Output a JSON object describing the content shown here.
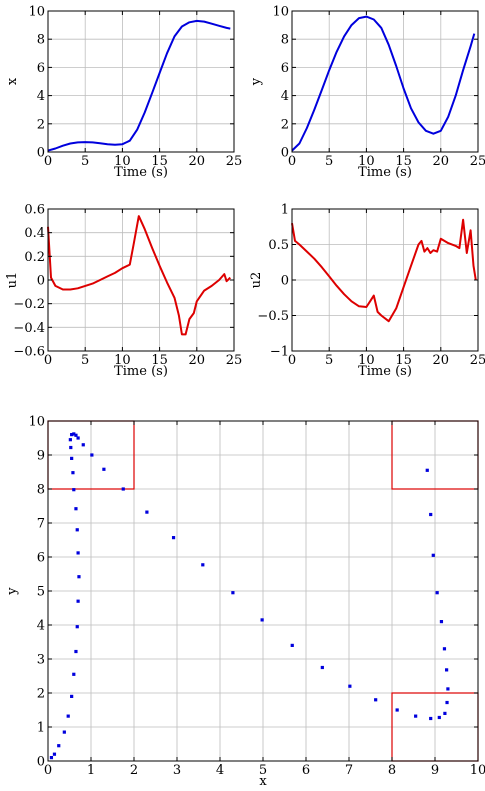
{
  "chart_data": [
    {
      "type": "line",
      "xlabel": "Time (s)",
      "ylabel": "x",
      "xlim": [
        0,
        25
      ],
      "ylim": [
        0,
        10
      ],
      "xticks": [
        0,
        5,
        10,
        15,
        20,
        25
      ],
      "yticks": [
        0,
        2,
        4,
        6,
        8,
        10
      ],
      "grid": true,
      "series": [
        {
          "color": "#0000dd",
          "x": [
            0,
            1,
            2,
            3,
            4,
            5,
            6,
            7,
            8,
            9,
            10,
            11,
            12,
            13,
            14,
            15,
            16,
            17,
            18,
            19,
            20,
            21,
            22,
            23,
            24,
            24.5
          ],
          "y": [
            0.1,
            0.25,
            0.45,
            0.6,
            0.68,
            0.7,
            0.68,
            0.62,
            0.55,
            0.52,
            0.55,
            0.8,
            1.6,
            2.8,
            4.2,
            5.6,
            7.0,
            8.2,
            8.9,
            9.2,
            9.3,
            9.25,
            9.1,
            8.95,
            8.8,
            8.75
          ]
        }
      ]
    },
    {
      "type": "line",
      "xlabel": "Time (s)",
      "ylabel": "y",
      "xlim": [
        0,
        25
      ],
      "ylim": [
        0,
        10
      ],
      "xticks": [
        0,
        5,
        10,
        15,
        20,
        25
      ],
      "yticks": [
        0,
        2,
        4,
        6,
        8,
        10
      ],
      "grid": true,
      "series": [
        {
          "color": "#0000dd",
          "x": [
            0,
            1,
            2,
            3,
            4,
            5,
            6,
            7,
            8,
            9,
            10,
            11,
            12,
            13,
            14,
            15,
            16,
            17,
            18,
            19,
            20,
            21,
            22,
            23,
            24,
            24.5
          ],
          "y": [
            0.1,
            0.6,
            1.7,
            3.0,
            4.4,
            5.8,
            7.1,
            8.2,
            9.0,
            9.5,
            9.6,
            9.4,
            8.8,
            7.6,
            6.1,
            4.5,
            3.1,
            2.1,
            1.5,
            1.3,
            1.5,
            2.5,
            4.0,
            5.8,
            7.5,
            8.4
          ]
        }
      ]
    },
    {
      "type": "line",
      "xlabel": "Time (s)",
      "ylabel": "u1",
      "xlim": [
        0,
        25
      ],
      "ylim": [
        -0.6,
        0.6
      ],
      "xticks": [
        0,
        5,
        10,
        15,
        20,
        25
      ],
      "yticks": [
        -0.6,
        -0.4,
        -0.2,
        0,
        0.2,
        0.4,
        0.6
      ],
      "grid": true,
      "series": [
        {
          "color": "#dd0000",
          "x": [
            0,
            0.4,
            1,
            2,
            3,
            4,
            5,
            6,
            7,
            8,
            9,
            10,
            11,
            11.5,
            12.2,
            13,
            14,
            15,
            16,
            17,
            17.6,
            18,
            18.5,
            19,
            19.6,
            20,
            21,
            22,
            23,
            23.7,
            24,
            24.5
          ],
          "y": [
            0.45,
            0.02,
            -0.05,
            -0.08,
            -0.08,
            -0.07,
            -0.05,
            -0.03,
            0.0,
            0.03,
            0.06,
            0.1,
            0.13,
            0.3,
            0.54,
            0.43,
            0.27,
            0.12,
            -0.02,
            -0.15,
            -0.3,
            -0.46,
            -0.46,
            -0.33,
            -0.28,
            -0.18,
            -0.09,
            -0.05,
            0.0,
            0.05,
            -0.01,
            0.02
          ]
        }
      ]
    },
    {
      "type": "line",
      "xlabel": "Time (s)",
      "ylabel": "u2",
      "xlim": [
        0,
        25
      ],
      "ylim": [
        -1,
        1
      ],
      "xticks": [
        0,
        5,
        10,
        15,
        20,
        25
      ],
      "yticks": [
        -1,
        -0.5,
        0,
        0.5,
        1
      ],
      "grid": true,
      "series": [
        {
          "color": "#dd0000",
          "x": [
            0,
            0.4,
            1,
            2,
            3,
            4,
            5,
            6,
            7,
            8,
            9,
            10,
            10.5,
            11,
            11.5,
            12,
            13,
            14,
            15,
            16,
            17,
            17.4,
            17.8,
            18.2,
            18.6,
            19,
            19.5,
            20,
            21,
            22,
            22.5,
            23,
            23.5,
            24,
            24.4,
            24.7
          ],
          "y": [
            0.8,
            0.55,
            0.5,
            0.4,
            0.3,
            0.18,
            0.05,
            -0.08,
            -0.2,
            -0.3,
            -0.37,
            -0.38,
            -0.3,
            -0.22,
            -0.45,
            -0.5,
            -0.58,
            -0.4,
            -0.1,
            0.2,
            0.5,
            0.55,
            0.4,
            0.45,
            0.38,
            0.42,
            0.4,
            0.58,
            0.52,
            0.48,
            0.45,
            0.85,
            0.38,
            0.7,
            0.2,
            0.0
          ]
        }
      ]
    },
    {
      "type": "scatter",
      "xlabel": "x",
      "ylabel": "y",
      "xlim": [
        0,
        10
      ],
      "ylim": [
        0,
        10
      ],
      "xticks": [
        0,
        1,
        2,
        3,
        4,
        5,
        6,
        7,
        8,
        9,
        10
      ],
      "yticks": [
        0,
        1,
        2,
        3,
        4,
        5,
        6,
        7,
        8,
        9,
        10
      ],
      "grid": true,
      "point_color": "#0000dd",
      "region_color": "#dd0000",
      "regions": [
        {
          "x": [
            0,
            2
          ],
          "y": [
            8,
            10
          ]
        },
        {
          "x": [
            8,
            10
          ],
          "y": [
            8,
            10
          ]
        },
        {
          "x": [
            8,
            10
          ],
          "y": [
            0,
            2
          ]
        }
      ],
      "points": [
        [
          0.08,
          0.1
        ],
        [
          0.15,
          0.2
        ],
        [
          0.25,
          0.45
        ],
        [
          0.38,
          0.85
        ],
        [
          0.47,
          1.32
        ],
        [
          0.55,
          1.9
        ],
        [
          0.6,
          2.55
        ],
        [
          0.65,
          3.22
        ],
        [
          0.68,
          3.95
        ],
        [
          0.7,
          4.7
        ],
        [
          0.72,
          5.42
        ],
        [
          0.7,
          6.12
        ],
        [
          0.68,
          6.8
        ],
        [
          0.65,
          7.42
        ],
        [
          0.6,
          7.98
        ],
        [
          0.58,
          8.48
        ],
        [
          0.55,
          8.9
        ],
        [
          0.53,
          9.22
        ],
        [
          0.52,
          9.45
        ],
        [
          0.55,
          9.6
        ],
        [
          0.6,
          9.62
        ],
        [
          0.65,
          9.58
        ],
        [
          0.7,
          9.5
        ],
        [
          0.82,
          9.3
        ],
        [
          1.02,
          9.0
        ],
        [
          1.3,
          8.58
        ],
        [
          1.75,
          8.0
        ],
        [
          2.3,
          7.32
        ],
        [
          2.92,
          6.57
        ],
        [
          3.6,
          5.77
        ],
        [
          4.3,
          4.95
        ],
        [
          4.98,
          4.15
        ],
        [
          5.68,
          3.4
        ],
        [
          6.38,
          2.75
        ],
        [
          7.02,
          2.2
        ],
        [
          7.62,
          1.8
        ],
        [
          8.12,
          1.5
        ],
        [
          8.55,
          1.32
        ],
        [
          8.9,
          1.25
        ],
        [
          9.1,
          1.28
        ],
        [
          9.23,
          1.4
        ],
        [
          9.28,
          1.72
        ],
        [
          9.3,
          2.12
        ],
        [
          9.27,
          2.68
        ],
        [
          9.22,
          3.3
        ],
        [
          9.15,
          4.1
        ],
        [
          9.05,
          4.95
        ],
        [
          8.96,
          6.05
        ],
        [
          8.9,
          7.25
        ],
        [
          8.82,
          8.55
        ]
      ]
    }
  ]
}
